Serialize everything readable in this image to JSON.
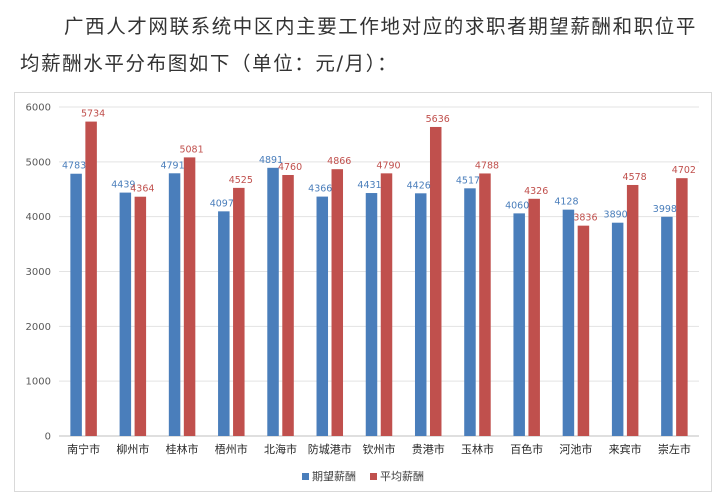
{
  "intro_text": "广西人才网联系统中区内主要工作地对应的求职者期望薪酬和职位平均薪酬水平分布图如下（单位：元/月）：",
  "colors": {
    "expected": "#4a7ebb",
    "average": "#c0504d"
  },
  "chart_data": {
    "type": "bar",
    "categories": [
      "南宁市",
      "柳州市",
      "桂林市",
      "梧州市",
      "北海市",
      "防城港市",
      "钦州市",
      "贵港市",
      "玉林市",
      "百色市",
      "河池市",
      "来宾市",
      "崇左市"
    ],
    "series": [
      {
        "name": "期望薪酬",
        "values": [
          4783,
          4439,
          4791,
          4097,
          4891,
          4366,
          4431,
          4426,
          4517,
          4060,
          4128,
          3890,
          3998
        ]
      },
      {
        "name": "平均薪酬",
        "values": [
          5734,
          4364,
          5081,
          4525,
          4760,
          4866,
          4790,
          5636,
          4788,
          4326,
          3836,
          4578,
          4702
        ]
      }
    ],
    "y_ticks": [
      0,
      1000,
      2000,
      3000,
      4000,
      5000,
      6000
    ],
    "ylim": [
      0,
      6000
    ],
    "grid": true,
    "legend_position": "bottom"
  }
}
